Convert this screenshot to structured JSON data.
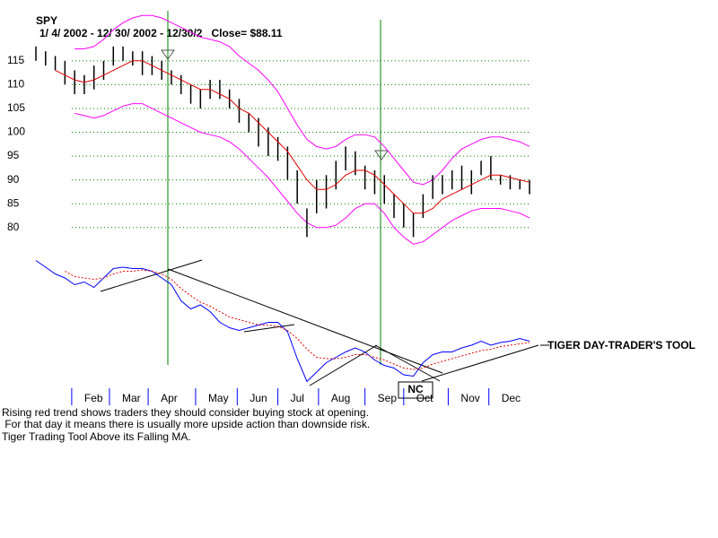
{
  "chart_data": [
    {
      "type": "range-bar",
      "title": "SPY",
      "subtitle": "1/ 4/ 2002 - 12/ 30/ 2002 - 12/30/2   Close= $88.11",
      "x": [
        0,
        1,
        2,
        3,
        4,
        5,
        6,
        7,
        8,
        9,
        10,
        11,
        12,
        13,
        14,
        15,
        16,
        17,
        18,
        19,
        20,
        21,
        22,
        23,
        24,
        25,
        26,
        27,
        28,
        29,
        30,
        31,
        32,
        33,
        34,
        35,
        36,
        37,
        38,
        39,
        40,
        41,
        42,
        43,
        44,
        45,
        46,
        47,
        48,
        49,
        50,
        51
      ],
      "xlim": [
        0,
        51
      ],
      "xticks": [
        {
          "value": 3.7,
          "label": "Feb"
        },
        {
          "value": 7.6,
          "label": "Mar"
        },
        {
          "value": 11.6,
          "label": "Apr"
        },
        {
          "value": 16.5,
          "label": "May"
        },
        {
          "value": 20.8,
          "label": "Jun"
        },
        {
          "value": 25,
          "label": "Jul"
        },
        {
          "value": 29.2,
          "label": "Aug"
        },
        {
          "value": 34,
          "label": "Sep"
        },
        {
          "value": 38,
          "label": "Oct"
        },
        {
          "value": 42.6,
          "label": "Nov"
        },
        {
          "value": 46.8,
          "label": "Dec"
        }
      ],
      "high": [
        118,
        117,
        116,
        115,
        113,
        112,
        114,
        115,
        118,
        118,
        117,
        117,
        116,
        115,
        113,
        112,
        110,
        109,
        111,
        111,
        109,
        107,
        104,
        103,
        101,
        99,
        97,
        92,
        84,
        90,
        91,
        94,
        97,
        96,
        93,
        92,
        91,
        87,
        85,
        83,
        87,
        91,
        91,
        92,
        93,
        92,
        94,
        95,
        91,
        91,
        90,
        90
      ],
      "low": [
        115,
        114,
        113,
        110,
        108,
        108,
        109,
        111,
        114,
        115,
        114,
        112,
        112,
        111,
        110,
        108,
        106,
        105,
        107,
        107,
        105,
        102,
        100,
        97,
        95,
        94,
        90,
        85,
        78,
        83,
        84,
        88,
        92,
        91,
        88,
        87,
        85,
        82,
        80,
        78,
        82,
        86,
        87,
        88,
        88,
        87,
        91,
        90,
        89,
        88,
        88,
        87
      ],
      "bar_color": "#000000",
      "ma": [
        null,
        null,
        113,
        112,
        111,
        110.5,
        111,
        112,
        113,
        114,
        115,
        115,
        114,
        113,
        112,
        111,
        110,
        109,
        109,
        108,
        107,
        105,
        104,
        102,
        100,
        98,
        96,
        93,
        90,
        88,
        88,
        89,
        91,
        92,
        92,
        91,
        89,
        87,
        85,
        83,
        83,
        84,
        86,
        87,
        88,
        89,
        90,
        91,
        91,
        90.5,
        90,
        89.5
      ],
      "ma_color": "#e00000",
      "upper_band": [
        null,
        null,
        null,
        null,
        117.5,
        117.5,
        118,
        119.5,
        121.5,
        123,
        124,
        124.5,
        124.5,
        124,
        123,
        122,
        121,
        120,
        119.5,
        119,
        118,
        116,
        114.5,
        113,
        111,
        108.5,
        105,
        101.5,
        98.5,
        97,
        96.5,
        97,
        98.5,
        99.5,
        99.5,
        99,
        97,
        94.5,
        92,
        89.5,
        89,
        90,
        92,
        94.5,
        96.5,
        97.5,
        98.5,
        99,
        99,
        98.5,
        98,
        97
      ],
      "lower_band": [
        null,
        null,
        null,
        null,
        104,
        103.5,
        103,
        103.5,
        104.5,
        105.5,
        106,
        106,
        105,
        104,
        103,
        102,
        101,
        100,
        99.5,
        99,
        98,
        96.5,
        94.5,
        92.5,
        90.5,
        88,
        85.5,
        83,
        81,
        80,
        80,
        80.5,
        82,
        84,
        85,
        85,
        83,
        80,
        78,
        76.5,
        77,
        78.5,
        80,
        81.5,
        82.5,
        83.5,
        84,
        84,
        84,
        83.5,
        83,
        82
      ],
      "band_color": "#ff00ff",
      "ylim": [
        76,
        124
      ],
      "yticks": [
        80,
        85,
        90,
        95,
        100,
        105,
        110,
        115
      ],
      "grid": true,
      "grid_color": "#008000"
    },
    {
      "type": "line",
      "title": "TIGER DAY-TRADER'S TOOL",
      "annotation": "NC",
      "x": [
        0,
        1,
        2,
        3,
        4,
        5,
        6,
        7,
        8,
        9,
        10,
        11,
        12,
        13,
        14,
        15,
        16,
        17,
        18,
        19,
        20,
        21,
        22,
        23,
        24,
        25,
        26,
        27,
        28,
        29,
        30,
        31,
        32,
        33,
        34,
        35,
        36,
        37,
        38,
        39,
        40,
        41,
        42,
        43,
        44,
        45,
        46,
        47,
        48,
        49,
        50,
        51
      ],
      "xlim": [
        0,
        51
      ],
      "ylim": [
        0,
        100
      ],
      "series": [
        {
          "color": "#0000ff",
          "values": [
            93,
            88,
            83,
            80,
            75,
            77,
            73,
            80,
            87,
            88,
            87,
            87,
            85,
            80,
            75,
            63,
            57,
            60,
            55,
            47,
            43,
            41,
            43,
            45,
            47,
            47,
            40,
            20,
            3,
            10,
            17,
            21,
            25,
            28,
            25,
            19,
            15,
            13,
            8,
            7,
            17,
            23,
            25,
            25,
            28,
            30,
            33,
            30,
            32,
            33,
            35,
            33
          ]
        },
        {
          "color": "#e00000",
          "dashed": true,
          "values": [
            null,
            null,
            null,
            85,
            81,
            80,
            79,
            80,
            83,
            85,
            85,
            86,
            85,
            83,
            79,
            72,
            67,
            62,
            59,
            55,
            51,
            49,
            47,
            45,
            45,
            44,
            41,
            35,
            27,
            21,
            20,
            20,
            21,
            23,
            23,
            21,
            19,
            16,
            13,
            12,
            13,
            16,
            18,
            20,
            22,
            24,
            26,
            27,
            29,
            30,
            31,
            32
          ]
        }
      ]
    }
  ],
  "notes": [
    "Rising red trend shows traders they should consider buying stock at opening.",
    " For that day it means there is usually more upside action than downside risk.",
    "Tiger Trading Tool Above its Falling MA."
  ]
}
